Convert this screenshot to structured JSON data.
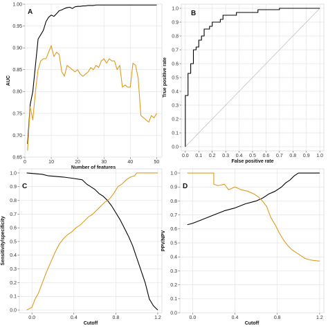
{
  "colors": {
    "black_series": "#000000",
    "orange_series": "#e09a1c",
    "grid": "#e4e4e4",
    "diagonal": "#bbbbbb"
  },
  "chart_data": [
    {
      "panel": "A",
      "type": "line",
      "xlabel": "Number of features",
      "ylabel": "AUC",
      "xlim": [
        0,
        52
      ],
      "ylim": [
        0.65,
        1.0
      ],
      "xticks": [
        "0",
        "10",
        "20",
        "30",
        "40",
        "50"
      ],
      "yticks": [
        "0.65",
        "0.70",
        "0.75",
        "0.80",
        "0.85",
        "0.90",
        "0.95",
        "1.00"
      ],
      "grid": true,
      "series": [
        {
          "color": "black",
          "x": [
            1,
            2,
            3,
            4,
            5,
            6,
            7,
            8,
            9,
            10,
            11,
            12,
            13,
            14,
            15,
            16,
            17,
            18,
            19,
            20,
            21,
            22,
            23,
            24,
            25,
            26,
            27,
            28,
            29,
            30,
            31,
            32,
            33,
            34,
            35,
            36,
            37,
            38,
            39,
            40,
            41,
            42,
            43,
            44,
            45,
            46,
            47,
            48,
            49,
            50
          ],
          "values": [
            0.68,
            0.77,
            0.8,
            0.86,
            0.92,
            0.93,
            0.94,
            0.96,
            0.97,
            0.975,
            0.972,
            0.978,
            0.985,
            0.987,
            0.99,
            0.992,
            0.993,
            0.99,
            0.994,
            0.995,
            0.995,
            0.996,
            0.996,
            0.997,
            0.997,
            0.997,
            0.998,
            0.998,
            0.998,
            0.998,
            0.998,
            0.998,
            0.998,
            0.998,
            0.998,
            0.998,
            0.998,
            0.998,
            0.998,
            0.998,
            0.998,
            0.998,
            0.998,
            0.998,
            0.998,
            0.998,
            0.998,
            0.998,
            0.998,
            0.998
          ]
        },
        {
          "color": "orange",
          "x": [
            1,
            2,
            3,
            4,
            5,
            6,
            7,
            8,
            9,
            10,
            11,
            12,
            13,
            14,
            15,
            16,
            17,
            18,
            19,
            20,
            21,
            22,
            23,
            24,
            25,
            26,
            27,
            28,
            29,
            30,
            31,
            32,
            33,
            34,
            35,
            36,
            37,
            38,
            39,
            40,
            41,
            42,
            43,
            44,
            45,
            46,
            47,
            48,
            49,
            50
          ],
          "values": [
            0.665,
            0.765,
            0.735,
            0.8,
            0.85,
            0.87,
            0.875,
            0.875,
            0.89,
            0.905,
            0.88,
            0.89,
            0.885,
            0.845,
            0.835,
            0.86,
            0.855,
            0.85,
            0.845,
            0.85,
            0.84,
            0.835,
            0.84,
            0.845,
            0.855,
            0.85,
            0.86,
            0.855,
            0.87,
            0.875,
            0.865,
            0.875,
            0.87,
            0.87,
            0.85,
            0.86,
            0.81,
            0.815,
            0.81,
            0.81,
            0.865,
            0.86,
            0.83,
            0.745,
            0.74,
            0.735,
            0.73,
            0.745,
            0.74,
            0.75
          ]
        }
      ]
    },
    {
      "panel": "B",
      "type": "line",
      "xlabel": "False positive rate",
      "ylabel": "True positive rate",
      "xlim": [
        -0.03,
        1.03
      ],
      "ylim": [
        -0.03,
        1.03
      ],
      "xticks": [
        "0.0",
        "0.1",
        "0.2",
        "0.3",
        "0.4",
        "0.5",
        "0.6",
        "0.7",
        "0.8",
        "0.9",
        "1.0"
      ],
      "yticks": [
        "0.0",
        "0.1",
        "0.2",
        "0.3",
        "0.4",
        "0.5",
        "0.6",
        "0.7",
        "0.8",
        "0.9",
        "1.0"
      ],
      "grid": true,
      "diagonal": true,
      "series": [
        {
          "color": "black",
          "x": [
            0.0,
            0.0,
            0.0,
            0.02,
            0.02,
            0.04,
            0.04,
            0.06,
            0.06,
            0.08,
            0.08,
            0.1,
            0.1,
            0.12,
            0.12,
            0.14,
            0.14,
            0.18,
            0.18,
            0.2,
            0.2,
            0.26,
            0.26,
            0.28,
            0.28,
            0.38,
            0.38,
            0.54,
            0.54,
            0.7,
            0.7,
            1.0
          ],
          "values": [
            0.0,
            0.22,
            0.37,
            0.37,
            0.53,
            0.53,
            0.6,
            0.6,
            0.7,
            0.7,
            0.72,
            0.72,
            0.77,
            0.77,
            0.8,
            0.8,
            0.85,
            0.85,
            0.87,
            0.87,
            0.9,
            0.9,
            0.92,
            0.92,
            0.95,
            0.95,
            0.97,
            0.97,
            0.99,
            0.99,
            1.0,
            1.0
          ]
        }
      ]
    },
    {
      "panel": "C",
      "type": "line",
      "xlabel": "Cutoff",
      "ylabel": "Sensitivity/specificity",
      "xlim": [
        -0.12,
        1.24
      ],
      "ylim": [
        -0.02,
        1.03
      ],
      "xticks": [
        "0.0",
        "0.4",
        "0.8",
        "1.2"
      ],
      "yticks": [
        "0.0",
        "0.1",
        "0.2",
        "0.3",
        "0.4",
        "0.5",
        "0.6",
        "0.7",
        "0.8",
        "0.9",
        "1.0"
      ],
      "grid": true,
      "series": [
        {
          "color": "black",
          "x": [
            -0.05,
            0.1,
            0.15,
            0.3,
            0.4,
            0.48,
            0.52,
            0.6,
            0.64,
            0.68,
            0.72,
            0.76,
            0.8,
            0.84,
            0.88,
            0.92,
            0.96,
            1.0,
            1.04,
            1.08,
            1.12,
            1.16,
            1.2
          ],
          "values": [
            1.0,
            0.99,
            0.98,
            0.97,
            0.96,
            0.95,
            0.92,
            0.88,
            0.85,
            0.83,
            0.8,
            0.76,
            0.71,
            0.66,
            0.6,
            0.54,
            0.47,
            0.38,
            0.29,
            0.2,
            0.08,
            0.03,
            0.0
          ]
        },
        {
          "color": "orange",
          "x": [
            -0.05,
            0.0,
            0.03,
            0.06,
            0.1,
            0.14,
            0.18,
            0.22,
            0.26,
            0.3,
            0.34,
            0.38,
            0.42,
            0.46,
            0.5,
            0.54,
            0.58,
            0.62,
            0.66,
            0.7,
            0.74,
            0.78,
            0.82,
            0.86,
            0.9,
            0.94,
            0.98,
            1.0,
            1.2
          ],
          "values": [
            0.0,
            0.02,
            0.08,
            0.12,
            0.2,
            0.28,
            0.35,
            0.42,
            0.48,
            0.52,
            0.55,
            0.57,
            0.6,
            0.62,
            0.65,
            0.68,
            0.7,
            0.73,
            0.76,
            0.79,
            0.81,
            0.85,
            0.9,
            0.92,
            0.95,
            0.97,
            0.98,
            1.0,
            1.0
          ]
        }
      ]
    },
    {
      "panel": "D",
      "type": "line",
      "xlabel": "Cutoff",
      "ylabel": "PPV/NPV",
      "xlim": [
        -0.12,
        1.24
      ],
      "ylim": [
        0.0,
        1.03
      ],
      "xticks": [
        "0.0",
        "0.4",
        "0.8",
        "1.2"
      ],
      "yticks": [
        "0.0",
        "0.1",
        "0.2",
        "0.3",
        "0.4",
        "0.5",
        "0.6",
        "0.7",
        "0.8",
        "0.9",
        "1.0"
      ],
      "grid": true,
      "series": [
        {
          "color": "black",
          "x": [
            -0.05,
            0.0,
            0.1,
            0.2,
            0.3,
            0.4,
            0.5,
            0.6,
            0.66,
            0.72,
            0.78,
            0.84,
            0.88,
            0.92,
            0.96,
            1.0,
            1.2
          ],
          "values": [
            0.63,
            0.64,
            0.67,
            0.7,
            0.73,
            0.75,
            0.78,
            0.8,
            0.82,
            0.85,
            0.87,
            0.9,
            0.93,
            0.95,
            0.98,
            1.0,
            1.0
          ]
        },
        {
          "color": "orange",
          "x": [
            -0.05,
            0.2,
            0.2,
            0.24,
            0.3,
            0.34,
            0.4,
            0.46,
            0.52,
            0.58,
            0.62,
            0.66,
            0.7,
            0.74,
            0.78,
            0.82,
            0.86,
            0.9,
            0.94,
            0.98,
            1.02,
            1.06,
            1.1,
            1.14,
            1.2
          ],
          "values": [
            1.0,
            1.0,
            0.92,
            0.91,
            0.92,
            0.88,
            0.9,
            0.88,
            0.87,
            0.85,
            0.83,
            0.8,
            0.76,
            0.68,
            0.63,
            0.57,
            0.52,
            0.48,
            0.45,
            0.43,
            0.41,
            0.39,
            0.38,
            0.375,
            0.37
          ]
        }
      ]
    }
  ]
}
